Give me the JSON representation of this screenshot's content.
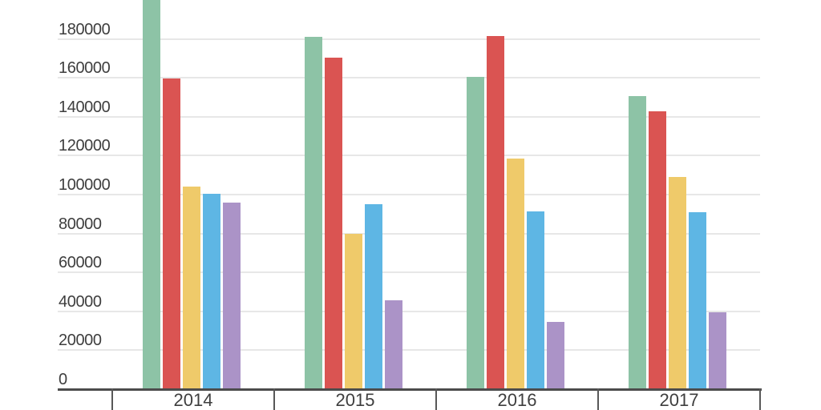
{
  "chart_data": {
    "type": "bar",
    "title": "",
    "xlabel": "",
    "ylabel": "",
    "categories": [
      "2014",
      "2015",
      "2016",
      "2017"
    ],
    "series": [
      {
        "name": "green",
        "color": "#8DC3A6",
        "values": [
          210000,
          181000,
          160500,
          150500
        ]
      },
      {
        "name": "red",
        "color": "#DA5452",
        "values": [
          159500,
          170500,
          181500,
          143000
        ]
      },
      {
        "name": "yellow",
        "color": "#EFCA6A",
        "values": [
          104000,
          80000,
          118500,
          109000
        ]
      },
      {
        "name": "blue",
        "color": "#5EB6E4",
        "values": [
          100500,
          95000,
          91500,
          91000
        ]
      },
      {
        "name": "purple",
        "color": "#AB93C7",
        "values": [
          96000,
          45500,
          34500,
          39500
        ]
      }
    ],
    "clipped_at_top": {
      "series": "green",
      "category": "2014"
    },
    "ylim": [
      0,
      200000
    ],
    "ytick_interval": 20000,
    "ytick_labels": [
      "0",
      "20000",
      "40000",
      "60000",
      "80000",
      "100000",
      "120000",
      "140000",
      "160000",
      "180000"
    ],
    "grid": true,
    "legend": "none"
  },
  "style": {
    "background": "#ffffff",
    "grid_color": "#e7e7e7",
    "axis_color": "#4c4c4c",
    "tick_color": "#585858",
    "text_color": "#3e3e3e"
  }
}
